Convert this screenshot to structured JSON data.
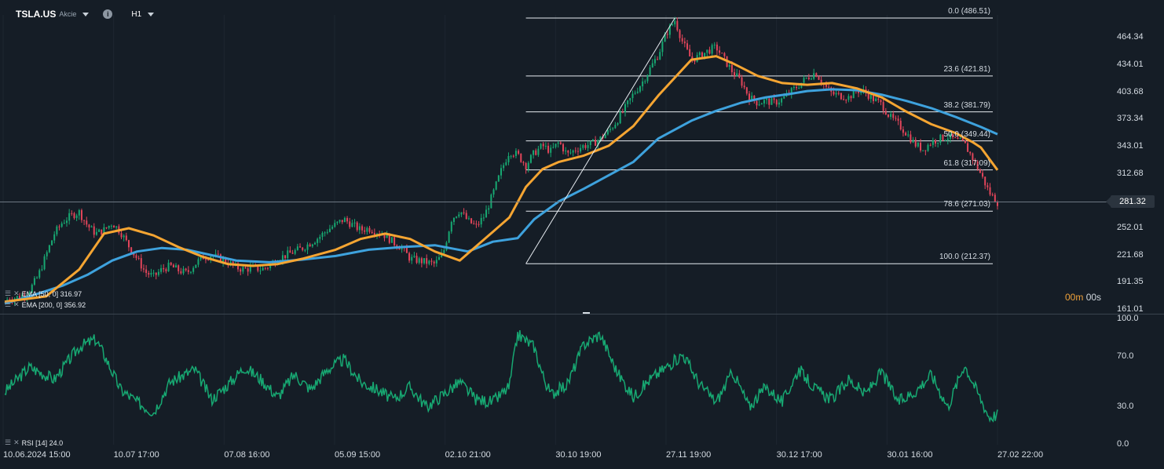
{
  "toolbar": {
    "symbol": "TSLA.US",
    "asset_type": "Akcie",
    "timeframe": "H1",
    "icons": [
      "chevron-down-icon",
      "info-icon",
      "chevron-down-icon"
    ]
  },
  "legend": {
    "ema50": "EMA [50, 0] 316.97",
    "ema200": "EMA [200, 0] 356.92",
    "rsi": "RSI [14] 24.0",
    "icons": [
      "settings-icon",
      "close-icon"
    ]
  },
  "countdown": {
    "minutes": "00m",
    "seconds": "00s"
  },
  "last_price": "281.32",
  "colors": {
    "background": "#151d26",
    "ema50": "#f5a532",
    "ema200": "#3ea2dd",
    "rsi": "#17a872",
    "candle_up": "#17a872",
    "candle_down": "#e2455a",
    "countdown": "#f0a23a"
  },
  "chart_data": [
    {
      "type": "candlestick",
      "title": "TSLA.US",
      "price_axis_ticks": [
        "464.34",
        "434.01",
        "403.68",
        "373.34",
        "343.01",
        "312.68",
        "281.32",
        "252.01",
        "221.68",
        "191.35",
        "161.01"
      ],
      "time_axis_ticks": [
        "10.06.2024 15:00",
        "10.07 17:00",
        "07.08 16:00",
        "05.09 15:00",
        "02.10 21:00",
        "30.10 19:00",
        "27.11 19:00",
        "30.12 17:00",
        "30.01 16:00",
        "27.02 22:00"
      ],
      "ylim": [
        161.01,
        490
      ],
      "current_price": 281.32,
      "price_path": [
        [
          0,
          172
        ],
        [
          2,
          176
        ],
        [
          3,
          183
        ],
        [
          4,
          198
        ],
        [
          5,
          222
        ],
        [
          6,
          246
        ],
        [
          7,
          259
        ],
        [
          8,
          266
        ],
        [
          9,
          270
        ],
        [
          10,
          255
        ],
        [
          11,
          246
        ],
        [
          12,
          250
        ],
        [
          13,
          258
        ],
        [
          14,
          248
        ],
        [
          15,
          232
        ],
        [
          16,
          218
        ],
        [
          17,
          203
        ],
        [
          18,
          198
        ],
        [
          19,
          206
        ],
        [
          20,
          210
        ],
        [
          21,
          205
        ],
        [
          22,
          202
        ],
        [
          23,
          212
        ],
        [
          24,
          220
        ],
        [
          25,
          222
        ],
        [
          26,
          218
        ],
        [
          27,
          214
        ],
        [
          28,
          208
        ],
        [
          29,
          206
        ],
        [
          30,
          208
        ],
        [
          31,
          206
        ],
        [
          32,
          210
        ],
        [
          33,
          218
        ],
        [
          34,
          222
        ],
        [
          35,
          226
        ],
        [
          36,
          230
        ],
        [
          37,
          236
        ],
        [
          38,
          242
        ],
        [
          39,
          250
        ],
        [
          40,
          256
        ],
        [
          41,
          262
        ],
        [
          42,
          256
        ],
        [
          43,
          250
        ],
        [
          44,
          252
        ],
        [
          45,
          248
        ],
        [
          46,
          244
        ],
        [
          47,
          236
        ],
        [
          48,
          230
        ],
        [
          49,
          218
        ],
        [
          50,
          216
        ],
        [
          51,
          214
        ],
        [
          52,
          212
        ],
        [
          53,
          224
        ],
        [
          54,
          262
        ],
        [
          55,
          272
        ],
        [
          56,
          260
        ],
        [
          57,
          254
        ],
        [
          58,
          266
        ],
        [
          59,
          290
        ],
        [
          60,
          316
        ],
        [
          61,
          338
        ],
        [
          62,
          334
        ],
        [
          63,
          322
        ],
        [
          64,
          336
        ],
        [
          65,
          344
        ],
        [
          66,
          338
        ],
        [
          67,
          348
        ],
        [
          68,
          334
        ],
        [
          69,
          340
        ],
        [
          70,
          344
        ],
        [
          71,
          346
        ],
        [
          72,
          352
        ],
        [
          73,
          360
        ],
        [
          74,
          372
        ],
        [
          75,
          386
        ],
        [
          76,
          402
        ],
        [
          77,
          414
        ],
        [
          78,
          430
        ],
        [
          79,
          446
        ],
        [
          80,
          470
        ],
        [
          81,
          484
        ],
        [
          82,
          458
        ],
        [
          83,
          440
        ],
        [
          84,
          444
        ],
        [
          85,
          450
        ],
        [
          86,
          454
        ],
        [
          87,
          440
        ],
        [
          88,
          426
        ],
        [
          89,
          416
        ],
        [
          90,
          398
        ],
        [
          91,
          392
        ],
        [
          92,
          394
        ],
        [
          93,
          392
        ],
        [
          94,
          396
        ],
        [
          95,
          404
        ],
        [
          96,
          412
        ],
        [
          97,
          420
        ],
        [
          98,
          426
        ],
        [
          99,
          412
        ],
        [
          100,
          402
        ],
        [
          101,
          400
        ],
        [
          102,
          398
        ],
        [
          103,
          406
        ],
        [
          104,
          404
        ],
        [
          105,
          396
        ],
        [
          106,
          390
        ],
        [
          107,
          376
        ],
        [
          108,
          368
        ],
        [
          109,
          358
        ],
        [
          110,
          346
        ],
        [
          111,
          340
        ],
        [
          112,
          348
        ],
        [
          113,
          352
        ],
        [
          114,
          354
        ],
        [
          115,
          350
        ],
        [
          116,
          346
        ],
        [
          117,
          330
        ],
        [
          118,
          312
        ],
        [
          119,
          292
        ],
        [
          120,
          281
        ]
      ],
      "series": [
        {
          "name": "EMA [50, 0]",
          "last": 316.97,
          "values": [
            [
              0,
              170
            ],
            [
              5,
              176
            ],
            [
              9,
              206
            ],
            [
              12,
              246
            ],
            [
              15,
              252
            ],
            [
              18,
              244
            ],
            [
              21,
              231
            ],
            [
              24,
              220
            ],
            [
              27,
              212
            ],
            [
              30,
              210
            ],
            [
              33,
              212
            ],
            [
              36,
              218
            ],
            [
              40,
              228
            ],
            [
              43,
              240
            ],
            [
              46,
              246
            ],
            [
              49,
              240
            ],
            [
              52,
              226
            ],
            [
              55,
              216
            ],
            [
              57,
              232
            ],
            [
              59,
              248
            ],
            [
              61,
              264
            ],
            [
              63,
              298
            ],
            [
              65,
              318
            ],
            [
              67,
              326
            ],
            [
              70,
              333
            ],
            [
              73,
              344
            ],
            [
              76,
              366
            ],
            [
              79,
              400
            ],
            [
              81,
              420
            ],
            [
              83,
              440
            ],
            [
              86,
              444
            ],
            [
              88,
              436
            ],
            [
              91,
              422
            ],
            [
              94,
              414
            ],
            [
              97,
              412
            ],
            [
              100,
              414
            ],
            [
              103,
              408
            ],
            [
              106,
              398
            ],
            [
              109,
              382
            ],
            [
              112,
              368
            ],
            [
              115,
              358
            ],
            [
              117,
              348
            ],
            [
              118,
              342
            ],
            [
              120,
              316.97
            ]
          ]
        },
        {
          "name": "EMA [200, 0]",
          "last": 356.92,
          "values": [
            [
              0,
              168
            ],
            [
              3,
              176
            ],
            [
              7,
              188
            ],
            [
              10,
              200
            ],
            [
              13,
              216
            ],
            [
              16,
              226
            ],
            [
              19,
              230
            ],
            [
              22,
              228
            ],
            [
              25,
              222
            ],
            [
              28,
              216
            ],
            [
              32,
              214
            ],
            [
              36,
              217
            ],
            [
              40,
              221
            ],
            [
              44,
              228
            ],
            [
              48,
              231
            ],
            [
              52,
              233
            ],
            [
              56,
              226
            ],
            [
              59,
              237
            ],
            [
              62,
              241
            ],
            [
              64,
              262
            ],
            [
              67,
              282
            ],
            [
              70,
              296
            ],
            [
              73,
              311
            ],
            [
              76,
              326
            ],
            [
              79,
              352
            ],
            [
              81,
              362
            ],
            [
              83,
              372
            ],
            [
              86,
              383
            ],
            [
              89,
              392
            ],
            [
              92,
              398
            ],
            [
              95,
              402
            ],
            [
              97,
              405
            ],
            [
              100,
              407
            ],
            [
              103,
              406
            ],
            [
              106,
              401
            ],
            [
              109,
              394
            ],
            [
              112,
              386
            ],
            [
              115,
              376
            ],
            [
              118,
              365
            ],
            [
              120,
              356.92
            ]
          ]
        }
      ],
      "fibonacci_levels": [
        {
          "label": "0.0 (486.51)",
          "value": 486.51
        },
        {
          "label": "23.6 (421.81)",
          "value": 421.81
        },
        {
          "label": "38.2 (381.79)",
          "value": 381.79
        },
        {
          "label": "50.0 (349.44)",
          "value": 349.44
        },
        {
          "label": "61.8 (317.09)",
          "value": 317.09
        },
        {
          "label": "78.6 (271.03)",
          "value": 271.03
        },
        {
          "label": "100.0 (212.37)",
          "value": 212.37
        }
      ],
      "trendline": {
        "from": [
          63,
          212.37
        ],
        "to": [
          81,
          486.51
        ]
      }
    },
    {
      "type": "line",
      "title": "RSI [14]",
      "ylim": [
        0,
        100
      ],
      "y_axis_ticks": [
        "100.0",
        "70.0",
        "30.0",
        "0.0"
      ],
      "last": 24.0,
      "values": [
        [
          0,
          42
        ],
        [
          3,
          62
        ],
        [
          6,
          52
        ],
        [
          9,
          78
        ],
        [
          11,
          84
        ],
        [
          12,
          72
        ],
        [
          14,
          44
        ],
        [
          16,
          34
        ],
        [
          18,
          26
        ],
        [
          20,
          50
        ],
        [
          23,
          60
        ],
        [
          25,
          36
        ],
        [
          27,
          48
        ],
        [
          29,
          62
        ],
        [
          31,
          52
        ],
        [
          33,
          38
        ],
        [
          35,
          56
        ],
        [
          37,
          44
        ],
        [
          39,
          60
        ],
        [
          41,
          68
        ],
        [
          43,
          50
        ],
        [
          45,
          44
        ],
        [
          47,
          36
        ],
        [
          49,
          46
        ],
        [
          51,
          30
        ],
        [
          53,
          40
        ],
        [
          55,
          50
        ],
        [
          57,
          36
        ],
        [
          59,
          34
        ],
        [
          61,
          46
        ],
        [
          62,
          88
        ],
        [
          64,
          78
        ],
        [
          65,
          56
        ],
        [
          66,
          40
        ],
        [
          68,
          48
        ],
        [
          70,
          80
        ],
        [
          72,
          88
        ],
        [
          74,
          58
        ],
        [
          76,
          38
        ],
        [
          78,
          52
        ],
        [
          80,
          62
        ],
        [
          82,
          72
        ],
        [
          84,
          48
        ],
        [
          86,
          34
        ],
        [
          88,
          58
        ],
        [
          90,
          30
        ],
        [
          92,
          46
        ],
        [
          94,
          34
        ],
        [
          96,
          60
        ],
        [
          98,
          44
        ],
        [
          100,
          36
        ],
        [
          102,
          52
        ],
        [
          104,
          40
        ],
        [
          106,
          58
        ],
        [
          108,
          34
        ],
        [
          110,
          42
        ],
        [
          112,
          56
        ],
        [
          114,
          30
        ],
        [
          116,
          64
        ],
        [
          117,
          50
        ],
        [
          118,
          36
        ],
        [
          119,
          22
        ],
        [
          120,
          24
        ]
      ]
    }
  ]
}
